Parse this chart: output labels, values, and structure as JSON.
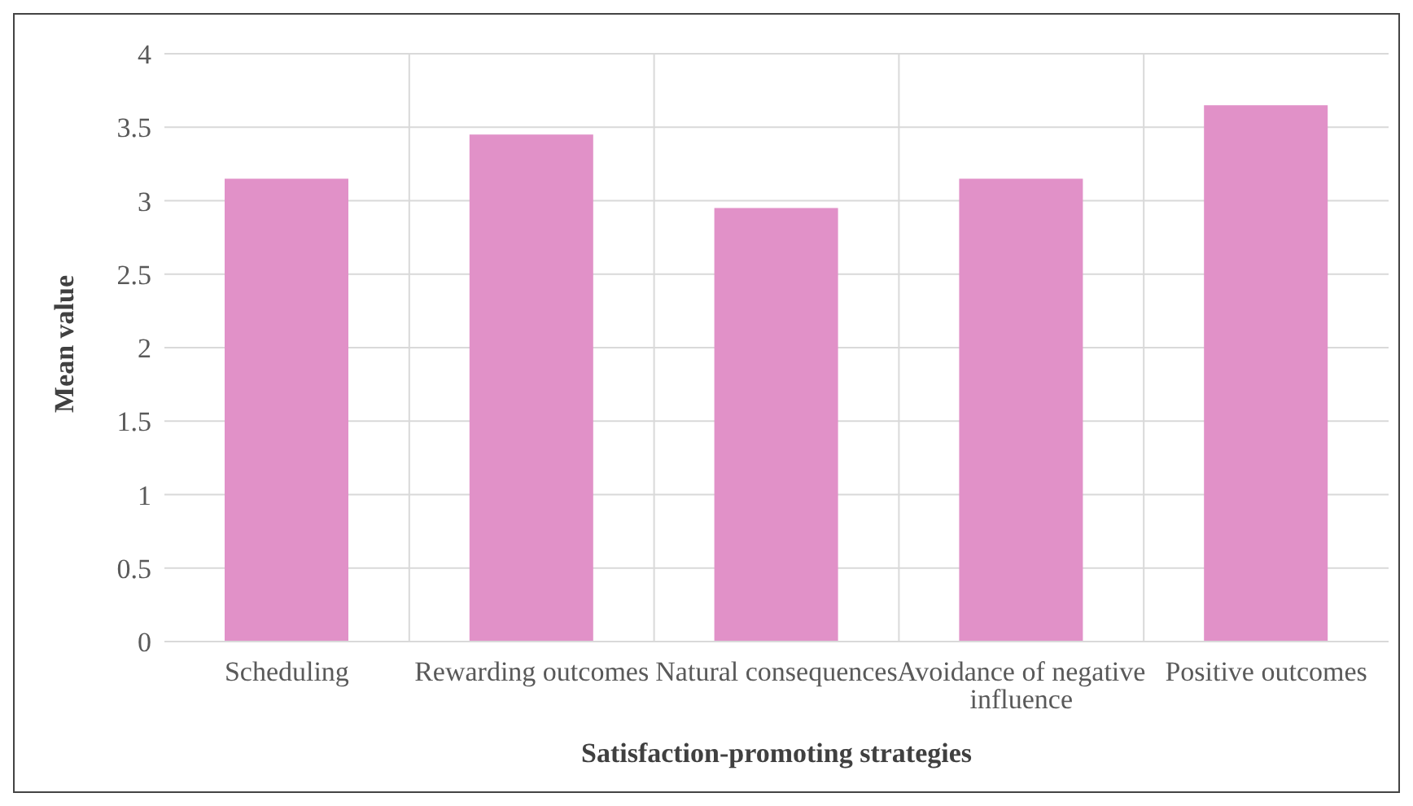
{
  "chart_data": {
    "type": "bar",
    "xlabel": "Satisfaction-promoting strategies",
    "ylabel": "Mean value",
    "categories": [
      "Scheduling",
      "Rewarding outcomes",
      "Natural consequences",
      "Avoidance of negative influence",
      "Positive outcomes"
    ],
    "values": [
      3.15,
      3.45,
      2.95,
      3.15,
      3.65
    ],
    "color": "#e191c8",
    "ylim": [
      0,
      4
    ],
    "yticks": [
      0,
      0.5,
      1,
      1.5,
      2,
      2.5,
      3,
      3.5,
      4
    ],
    "grid": true
  }
}
